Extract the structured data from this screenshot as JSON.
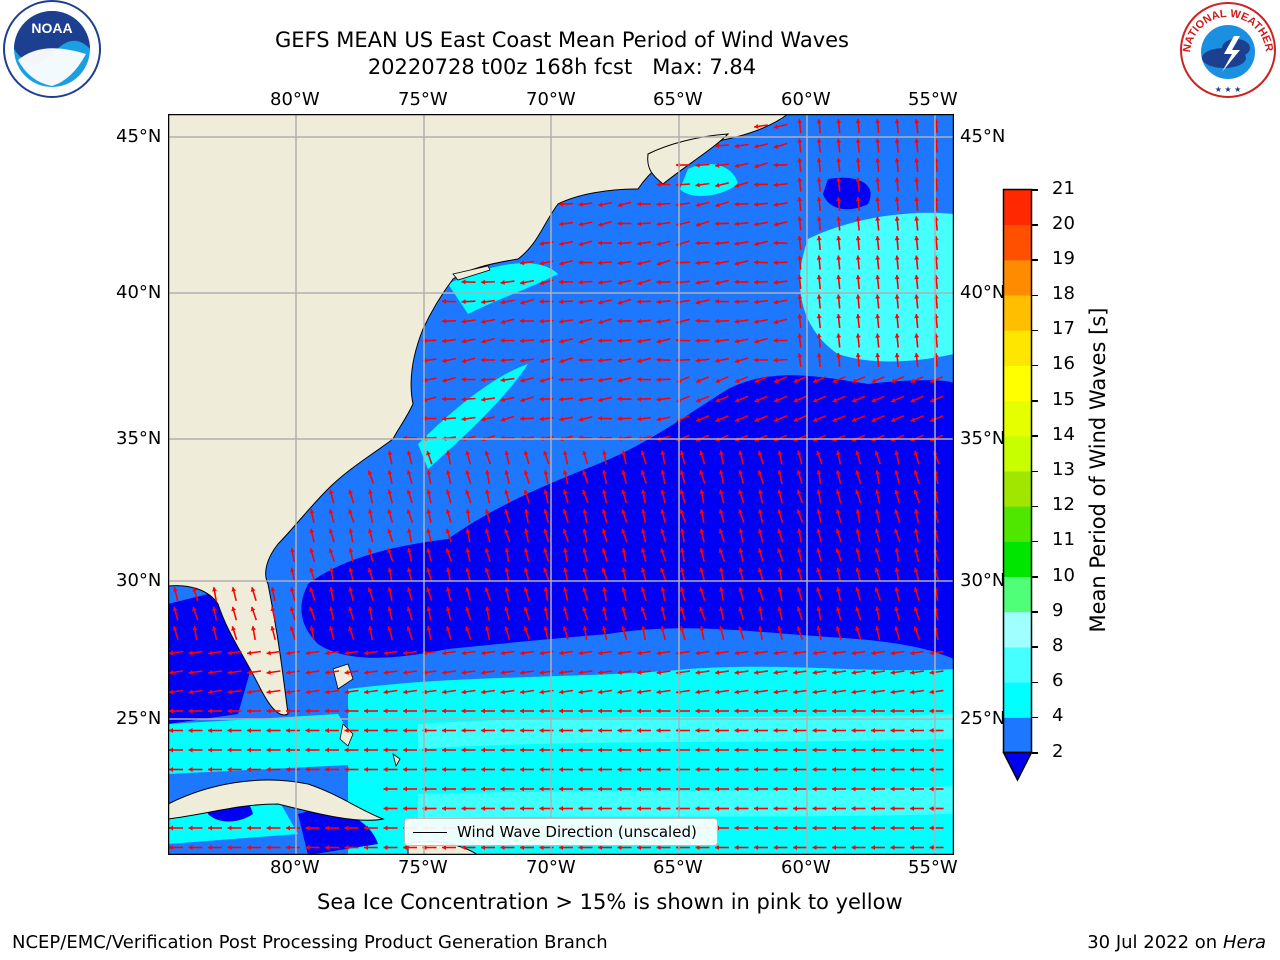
{
  "title_line1": "GEFS MEAN US East Coast Mean Period of Wind Waves",
  "title_line2": "20220728 t00z 168h fcst   Max: 7.84",
  "lon_labels": [
    "80°W",
    "75°W",
    "70°W",
    "65°W",
    "60°W",
    "55°W"
  ],
  "lat_labels": [
    "45°N",
    "40°N",
    "35°N",
    "30°N",
    "25°N"
  ],
  "colorbar": {
    "label": "Mean Period of Wind Waves [s]",
    "ticks": [
      "2",
      "4",
      "6",
      "8",
      "9",
      "10",
      "11",
      "12",
      "13",
      "14",
      "15",
      "16",
      "17",
      "18",
      "19",
      "20",
      "21"
    ],
    "colors": [
      "#0000f5",
      "#1e78ff",
      "#00ffff",
      "#46ffff",
      "#a0ffff",
      "#50ff78",
      "#00e600",
      "#4fe600",
      "#a0e600",
      "#c8ff00",
      "#e6ff00",
      "#ffff00",
      "#ffe600",
      "#ffbe00",
      "#ff8c00",
      "#ff5000",
      "#ff2800",
      "#ff0000"
    ]
  },
  "legend_label": "Wind Wave Direction (unscaled)",
  "subtitle": "Sea Ice Concentration > 15% is shown in pink to yellow",
  "footer_left": "NCEP/EMC/Verification Post Processing Product Generation Branch",
  "footer_right_date": "30 Jul 2022 on ",
  "footer_right_machine": "Hera",
  "logos": {
    "left": "NOAA",
    "right_text": "NATIONAL WEATHER SERVICE"
  },
  "map_extent": {
    "lon_min": -85,
    "lon_max": -54.3,
    "lat_min": 20.5,
    "lat_max": 45.8
  },
  "field_colors": {
    "land": "#efedd9",
    "dark_blue": "#0000f5",
    "mid_blue": "#1e78ff",
    "cyan": "#00ffff",
    "light_cyan": "#46ffff",
    "arrow": "#ff0000"
  }
}
